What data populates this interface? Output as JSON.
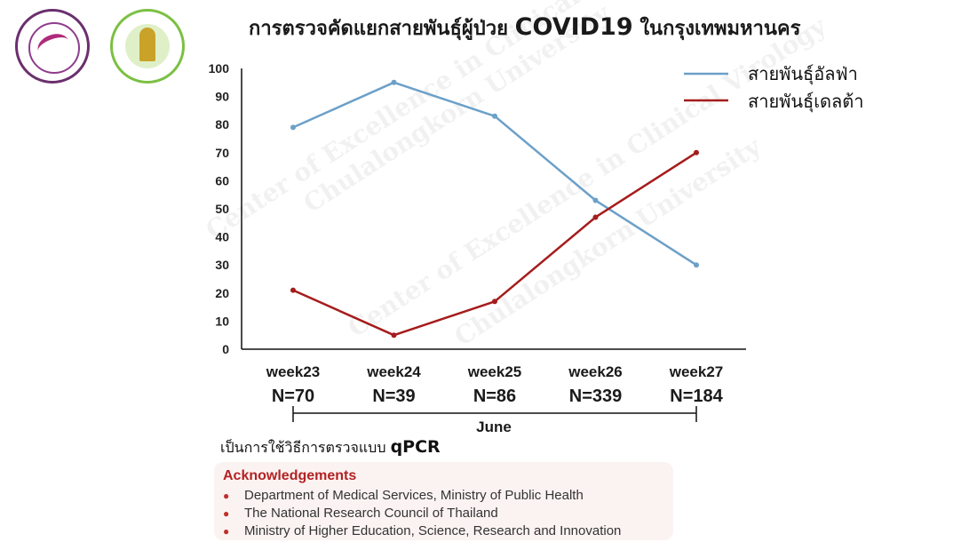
{
  "header": {
    "title_thai_prefix": "การตรวจคัดแยกสายพันธุ์ผู้ป่วย",
    "title_covid": "COVID19",
    "title_thai_suffix": "ในกรุงเทพมหานคร"
  },
  "chart_data": {
    "type": "line",
    "categories": [
      "week23",
      "week24",
      "week25",
      "week26",
      "week27"
    ],
    "sample_sizes": [
      "N=70",
      "N=39",
      "N=86",
      "N=339",
      "N=184"
    ],
    "x_group_label": "June",
    "ylim": [
      0,
      100
    ],
    "yticks": [
      0,
      10,
      20,
      30,
      40,
      50,
      60,
      70,
      80,
      90,
      100
    ],
    "grid": false,
    "legend_position": "top-right",
    "series": [
      {
        "name": "สายพันธุ์อัลฟ่า",
        "color": "#6ca0c8",
        "values": [
          79,
          95,
          83,
          53,
          30
        ]
      },
      {
        "name": "สายพันธุ์เดลต้า",
        "color": "#a51c1c",
        "values": [
          21,
          5,
          17,
          47,
          70
        ]
      }
    ],
    "watermark": [
      "Center of Excellence in Clinical Virology",
      "Chulalongkorn University"
    ]
  },
  "method": {
    "text": "เป็นการใช้วิธีการตรวจแบบ",
    "emphasis": "qPCR"
  },
  "acknowledgements": {
    "title": "Acknowledgements",
    "items": [
      "Department of Medical Services, Ministry of Public Health",
      "The National Research Council of Thailand",
      "Ministry of Higher Education, Science, Research and Innovation"
    ]
  },
  "logos": {
    "left": "Center of Excellence in Clinical Virology",
    "right": "Faculty of Medicine Chulalongkorn University"
  }
}
